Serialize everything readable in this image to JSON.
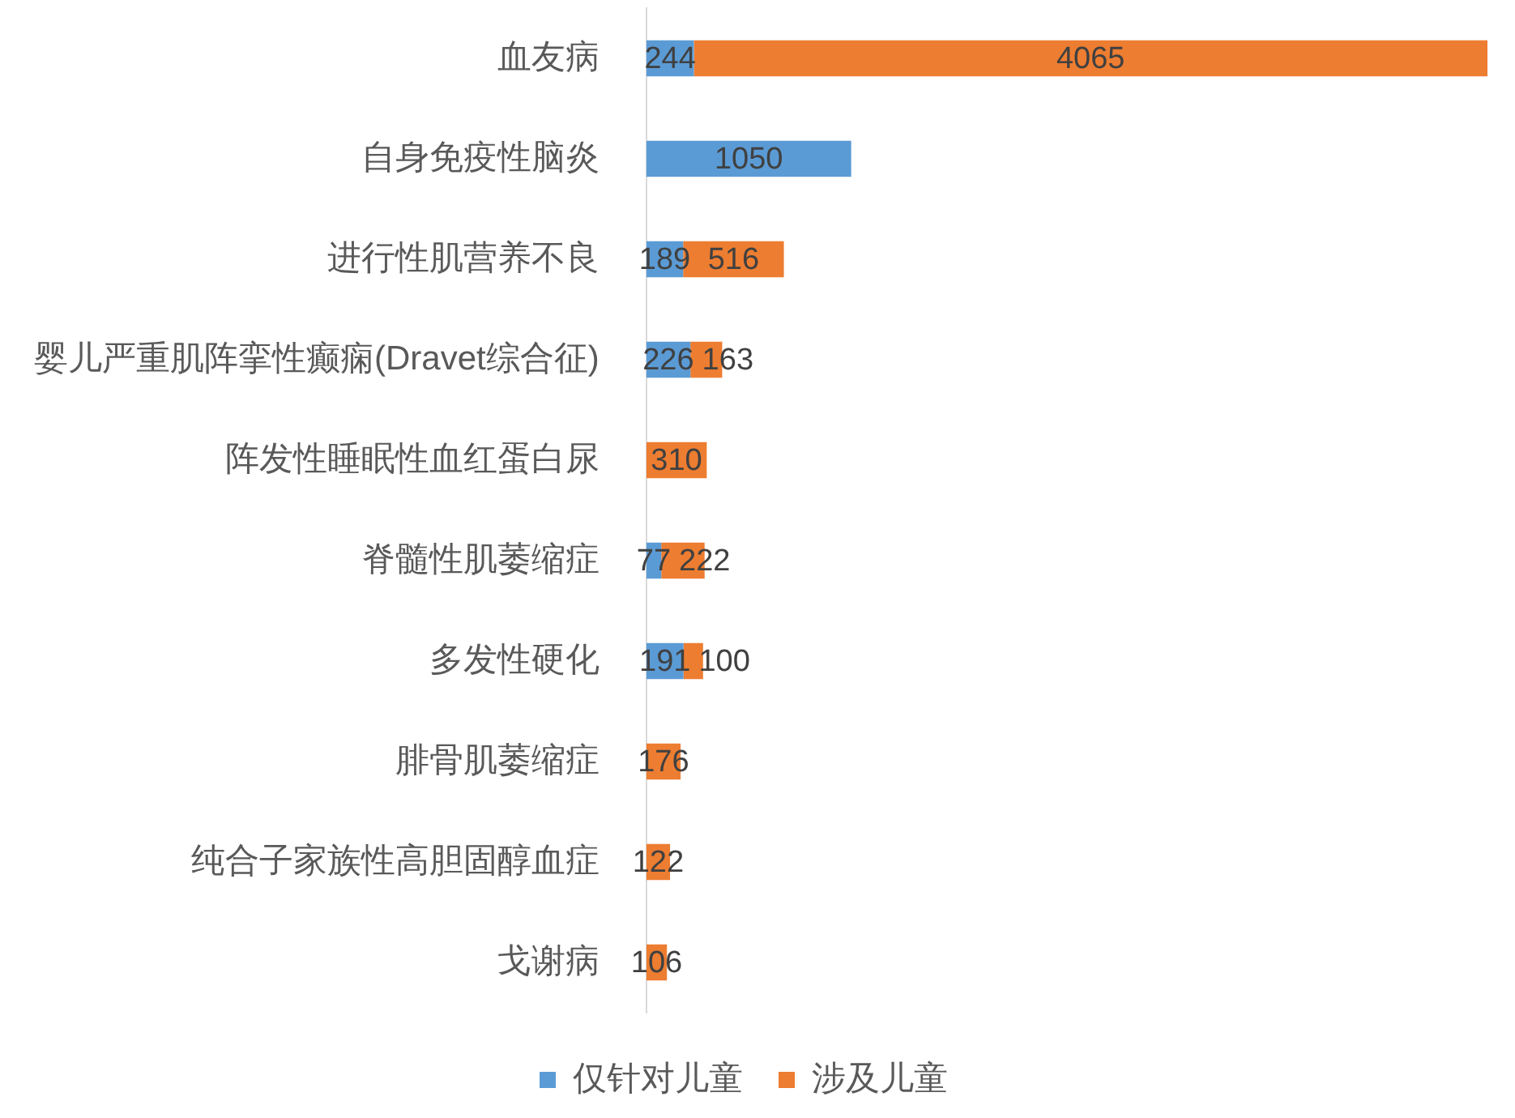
{
  "chart_data": {
    "type": "bar",
    "orientation": "horizontal",
    "stacked": true,
    "categories": [
      "血友病",
      "自身免疫性脑炎",
      "进行性肌营养不良",
      "婴儿严重肌阵挛性癫痫(Dravet综合征)",
      "阵发性睡眠性血红蛋白尿",
      "脊髓性肌萎缩症",
      "多发性硬化",
      "腓骨肌萎缩症",
      "纯合子家族性高胆固醇血症",
      "戈谢病"
    ],
    "series": [
      {
        "name": "仅针对儿童",
        "color": "#5b9bd5",
        "values": [
          244,
          1050,
          189,
          226,
          null,
          77,
          191,
          null,
          null,
          null
        ]
      },
      {
        "name": "涉及儿童",
        "color": "#ed7d31",
        "values": [
          4065,
          null,
          516,
          163,
          310,
          222,
          100,
          176,
          122,
          106
        ]
      }
    ],
    "data_labels": true,
    "legend": "bottom",
    "tick_labels": "y"
  }
}
